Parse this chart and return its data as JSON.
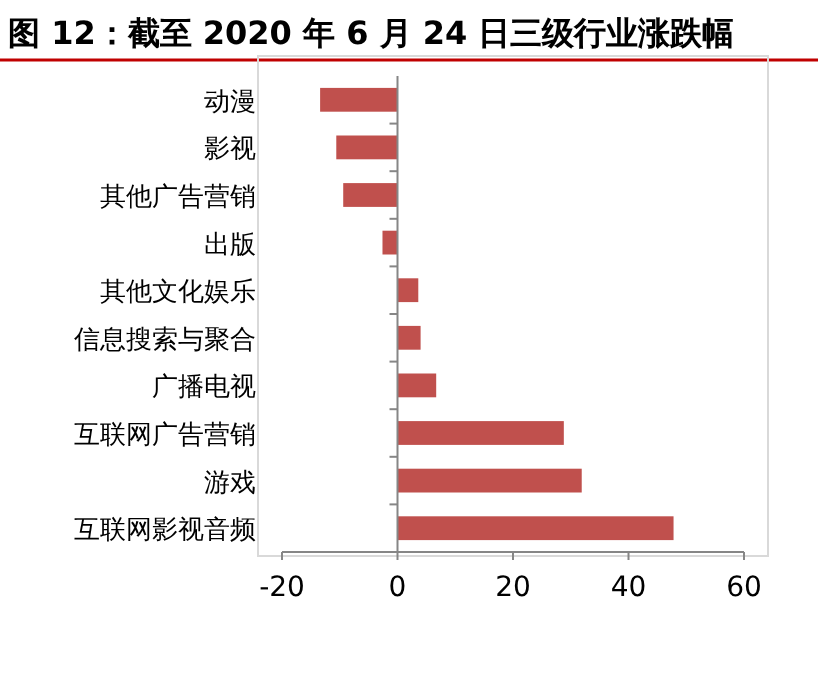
{
  "chart_data": {
    "type": "bar",
    "orientation": "horizontal",
    "title": "图 12：截至 2020 年 6 月 24 日三级行业涨跌幅",
    "categories": [
      "动漫",
      "影视",
      "其他广告营销",
      "出版",
      "其他文化娱乐",
      "信息搜索与聚合",
      "广播电视",
      "互联网广告营销",
      "游戏",
      "互联网影视音频"
    ],
    "values": [
      -13.4,
      -10.6,
      -9.4,
      -2.6,
      3.6,
      4.0,
      6.7,
      28.8,
      31.9,
      47.8
    ],
    "color": "#c0504d",
    "xlim": [
      -20,
      60
    ],
    "xticks": [
      -20,
      0,
      20,
      40,
      60
    ]
  }
}
